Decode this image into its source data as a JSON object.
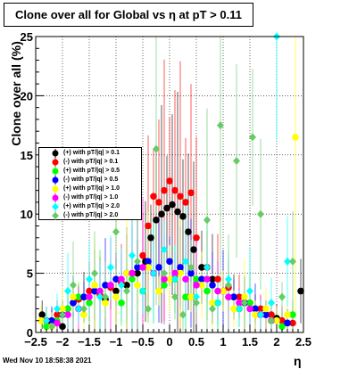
{
  "title": "Clone  over all for Global vs    η at pT > 0.11",
  "ylabel": "Clone  over all (%)",
  "xlabel": "η",
  "datestamp": "Wed Nov 10 18:58:38 2021",
  "chart_data": {
    "type": "scatter",
    "xlim": [
      -2.5,
      2.5
    ],
    "ylim": [
      0,
      25
    ],
    "x_ticks": [
      "−2.5",
      "−2",
      "−1.5",
      "−1",
      "−0.5",
      "0",
      "0.5",
      "1",
      "1.5",
      "2",
      "2.5"
    ],
    "y_ticks": [
      "0",
      "5",
      "10",
      "15",
      "20",
      "25"
    ],
    "grid": true,
    "legend_position": "middle-left",
    "series": [
      {
        "name": "(+) with pT/|q| > 0.1",
        "color": "#000000",
        "marker": "circle",
        "points": [
          [
            -2.38,
            1.5
          ],
          [
            -2.2,
            0.8
          ],
          [
            -2.0,
            0.5
          ],
          [
            -1.8,
            2.5
          ],
          [
            -1.6,
            3.0
          ],
          [
            -1.4,
            3.5
          ],
          [
            -1.2,
            2.8
          ],
          [
            -1.0,
            3.5
          ],
          [
            -0.8,
            4.0
          ],
          [
            -0.6,
            5.0
          ],
          [
            -0.45,
            6.0
          ],
          [
            -0.35,
            8.0
          ],
          [
            -0.25,
            9.5
          ],
          [
            -0.15,
            10.0
          ],
          [
            -0.05,
            10.5
          ],
          [
            0.05,
            10.8
          ],
          [
            0.15,
            10.2
          ],
          [
            0.25,
            9.8
          ],
          [
            0.35,
            8.5
          ],
          [
            0.45,
            7.0
          ],
          [
            0.6,
            5.5
          ],
          [
            0.8,
            4.5
          ],
          [
            1.0,
            3.5
          ],
          [
            1.2,
            3.0
          ],
          [
            1.4,
            2.5
          ],
          [
            1.6,
            2.0
          ],
          [
            1.8,
            1.5
          ],
          [
            2.0,
            1.2
          ],
          [
            2.2,
            0.8
          ],
          [
            2.45,
            3.5
          ]
        ]
      },
      {
        "name": "(-) with pT/|q| > 0.1",
        "color": "#ff0000",
        "marker": "circle",
        "points": [
          [
            -2.3,
            1.0
          ],
          [
            -2.1,
            1.5
          ],
          [
            -1.9,
            2.0
          ],
          [
            -1.7,
            2.8
          ],
          [
            -1.5,
            3.5
          ],
          [
            -1.3,
            3.2
          ],
          [
            -1.1,
            3.8
          ],
          [
            -0.9,
            4.2
          ],
          [
            -0.7,
            5.0
          ],
          [
            -0.5,
            6.5
          ],
          [
            -0.4,
            9.0
          ],
          [
            -0.3,
            11.5
          ],
          [
            -0.2,
            11.0
          ],
          [
            -0.1,
            12.0
          ],
          [
            0.0,
            12.8
          ],
          [
            0.1,
            12.0
          ],
          [
            0.2,
            11.5
          ],
          [
            0.3,
            11.0
          ],
          [
            0.4,
            11.8
          ],
          [
            0.5,
            8.0
          ],
          [
            0.7,
            5.5
          ],
          [
            0.9,
            4.5
          ],
          [
            1.1,
            3.8
          ],
          [
            1.3,
            3.0
          ],
          [
            1.5,
            2.5
          ],
          [
            1.7,
            2.0
          ],
          [
            1.9,
            1.5
          ],
          [
            2.1,
            1.0
          ],
          [
            2.3,
            0.8
          ]
        ]
      },
      {
        "name": "(+) with pT/|q| > 0.5",
        "color": "#00ff00",
        "marker": "circle",
        "points": [
          [
            -2.3,
            0.5
          ],
          [
            -2.1,
            1.0
          ],
          [
            -1.9,
            2.0
          ],
          [
            -1.7,
            3.0
          ],
          [
            -1.5,
            2.5
          ],
          [
            -1.3,
            3.5
          ],
          [
            -1.1,
            4.0
          ],
          [
            -0.9,
            2.5
          ],
          [
            -0.7,
            4.5
          ],
          [
            -0.5,
            3.5
          ],
          [
            -0.3,
            5.0
          ],
          [
            -0.1,
            4.0
          ],
          [
            0.1,
            4.5
          ],
          [
            0.3,
            3.0
          ],
          [
            0.5,
            4.5
          ],
          [
            0.7,
            3.5
          ],
          [
            0.9,
            2.5
          ],
          [
            1.1,
            3.0
          ],
          [
            1.3,
            2.0
          ],
          [
            1.5,
            2.5
          ],
          [
            1.7,
            1.5
          ],
          [
            1.9,
            1.0
          ],
          [
            2.1,
            0.5
          ],
          [
            2.3,
            1.5
          ]
        ]
      },
      {
        "name": "(-) with pT/|q| > 0.5",
        "color": "#0000ff",
        "marker": "circle",
        "points": [
          [
            -2.2,
            1.0
          ],
          [
            -2.0,
            1.5
          ],
          [
            -1.8,
            2.5
          ],
          [
            -1.6,
            3.0
          ],
          [
            -1.4,
            3.5
          ],
          [
            -1.2,
            4.0
          ],
          [
            -1.0,
            4.5
          ],
          [
            -0.8,
            5.0
          ],
          [
            -0.6,
            5.5
          ],
          [
            -0.4,
            6.0
          ],
          [
            -0.2,
            5.5
          ],
          [
            0.0,
            6.0
          ],
          [
            0.2,
            5.5
          ],
          [
            0.4,
            5.0
          ],
          [
            0.6,
            4.5
          ],
          [
            0.8,
            4.0
          ],
          [
            1.0,
            3.5
          ],
          [
            1.2,
            3.0
          ],
          [
            1.4,
            2.5
          ],
          [
            1.6,
            2.0
          ],
          [
            1.8,
            1.5
          ],
          [
            2.0,
            1.0
          ],
          [
            2.2,
            0.8
          ]
        ]
      },
      {
        "name": "(+) with pT/|q| > 1.0",
        "color": "#ffff00",
        "marker": "circle",
        "points": [
          [
            -2.4,
            1.0
          ],
          [
            -2.2,
            0.5
          ],
          [
            -2.0,
            2.0
          ],
          [
            -1.8,
            3.0
          ],
          [
            -1.6,
            1.5
          ],
          [
            -1.4,
            4.0
          ],
          [
            -1.2,
            2.5
          ],
          [
            -1.0,
            3.0
          ],
          [
            -0.8,
            5.0
          ],
          [
            -0.6,
            4.0
          ],
          [
            -0.4,
            5.5
          ],
          [
            -0.2,
            3.5
          ],
          [
            0.0,
            4.5
          ],
          [
            0.2,
            5.0
          ],
          [
            0.4,
            3.0
          ],
          [
            0.6,
            4.0
          ],
          [
            0.8,
            2.5
          ],
          [
            1.0,
            3.5
          ],
          [
            1.2,
            2.0
          ],
          [
            1.4,
            3.0
          ],
          [
            1.6,
            1.5
          ],
          [
            1.8,
            2.0
          ],
          [
            2.0,
            1.0
          ],
          [
            2.2,
            1.5
          ],
          [
            2.35,
            16.5
          ]
        ]
      },
      {
        "name": "(-) with pT/|q| > 1.0",
        "color": "#ff00ff",
        "marker": "circle",
        "points": [
          [
            -2.1,
            0.8
          ],
          [
            -1.9,
            1.5
          ],
          [
            -1.7,
            2.0
          ],
          [
            -1.5,
            3.0
          ],
          [
            -1.3,
            3.5
          ],
          [
            -1.1,
            4.0
          ],
          [
            -0.9,
            4.5
          ],
          [
            -0.7,
            5.0
          ],
          [
            -0.5,
            5.5
          ],
          [
            -0.3,
            5.0
          ],
          [
            -0.1,
            4.5
          ],
          [
            0.1,
            5.0
          ],
          [
            0.3,
            4.5
          ],
          [
            0.5,
            4.0
          ],
          [
            0.7,
            4.5
          ],
          [
            0.9,
            3.5
          ],
          [
            1.1,
            3.0
          ],
          [
            1.3,
            2.5
          ],
          [
            1.5,
            2.0
          ],
          [
            1.7,
            1.5
          ],
          [
            1.9,
            1.0
          ]
        ]
      },
      {
        "name": "(+) with pT/|q| > 2.0",
        "color": "#00ffff",
        "marker": "diamond",
        "points": [
          [
            -2.3,
            1.0
          ],
          [
            -2.1,
            2.0
          ],
          [
            -1.9,
            3.5
          ],
          [
            -1.7,
            2.0
          ],
          [
            -1.5,
            4.5
          ],
          [
            -1.3,
            3.0
          ],
          [
            -1.1,
            5.5
          ],
          [
            -0.9,
            4.0
          ],
          [
            -0.7,
            6.5
          ],
          [
            -0.5,
            3.5
          ],
          [
            -0.3,
            5.0
          ],
          [
            -0.1,
            7.0
          ],
          [
            0.1,
            4.5
          ],
          [
            0.3,
            6.0
          ],
          [
            0.5,
            3.0
          ],
          [
            0.7,
            5.5
          ],
          [
            0.9,
            2.5
          ],
          [
            1.1,
            4.5
          ],
          [
            1.3,
            2.0
          ],
          [
            1.5,
            3.5
          ],
          [
            1.7,
            1.5
          ],
          [
            1.9,
            2.5
          ],
          [
            2.0,
            25.0
          ],
          [
            2.2,
            6.0
          ]
        ]
      },
      {
        "name": "(-) with pT/|q| > 2.0",
        "color": "#66cc66",
        "marker": "diamond",
        "points": [
          [
            -2.2,
            0.5
          ],
          [
            -2.0,
            1.5
          ],
          [
            -1.8,
            4.0
          ],
          [
            -1.6,
            2.0
          ],
          [
            -1.4,
            5.0
          ],
          [
            -1.2,
            3.0
          ],
          [
            -1.0,
            8.5
          ],
          [
            -0.8,
            3.5
          ],
          [
            -0.6,
            6.0
          ],
          [
            -0.4,
            2.0
          ],
          [
            -0.25,
            15.5
          ],
          [
            -0.1,
            5.0
          ],
          [
            0.1,
            3.0
          ],
          [
            0.25,
            1.5
          ],
          [
            0.4,
            5.5
          ],
          [
            0.5,
            2.5
          ],
          [
            0.7,
            9.5
          ],
          [
            0.8,
            2.0
          ],
          [
            0.95,
            17.5
          ],
          [
            1.1,
            4.0
          ],
          [
            1.25,
            14.5
          ],
          [
            1.4,
            2.5
          ],
          [
            1.55,
            16.5
          ],
          [
            1.7,
            10.0
          ],
          [
            1.9,
            1.0
          ],
          [
            2.1,
            3.0
          ],
          [
            2.3,
            6.0
          ]
        ]
      }
    ]
  }
}
